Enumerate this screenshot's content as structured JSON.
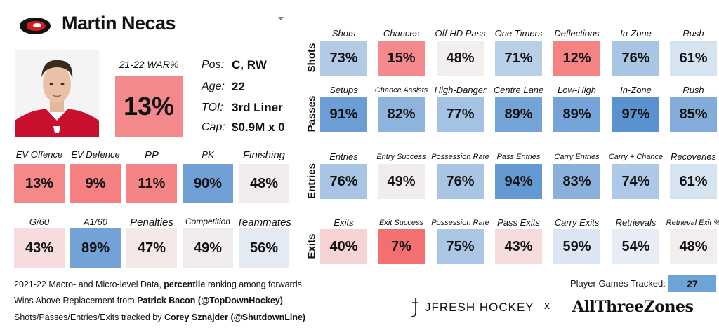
{
  "player": {
    "name": "Martin Necas",
    "war_label": "21-22 WAR%",
    "war_value": "13%",
    "war_color": "#f4898b",
    "info": [
      {
        "label": "Pos:",
        "value": "C, RW"
      },
      {
        "label": "Age:",
        "value": "22"
      },
      {
        "label": "TOI:",
        "value": "3rd Liner"
      },
      {
        "label": "Cap:",
        "value": "$0.9M x 0"
      }
    ]
  },
  "left_grid": [
    [
      {
        "label": "EV Offence",
        "value": "13%",
        "color": "#f5898a"
      },
      {
        "label": "EV Defence",
        "value": "9%",
        "color": "#f48081"
      },
      {
        "label": "PP",
        "value": "11%",
        "color": "#f48485"
      },
      {
        "label": "PK",
        "value": "90%",
        "color": "#6f9fd5"
      },
      {
        "label": "Finishing",
        "value": "48%",
        "color": "#f3ecec"
      }
    ],
    [
      {
        "label": "G/60",
        "value": "43%",
        "color": "#f6dcdc"
      },
      {
        "label": "A1/60",
        "value": "89%",
        "color": "#72a2d6"
      },
      {
        "label": "Penalties",
        "value": "47%",
        "color": "#f4e8e8"
      },
      {
        "label": "Competition",
        "value": "49%",
        "color": "#f1eded"
      },
      {
        "label": "Teammates",
        "value": "56%",
        "color": "#e3eaf4"
      }
    ]
  ],
  "right_grid": [
    {
      "row_label": "Shots",
      "cells": [
        {
          "label": "Shots",
          "value": "73%",
          "color": "#b1cbe7"
        },
        {
          "label": "Chances",
          "value": "15%",
          "color": "#f48a8b"
        },
        {
          "label": "Off HD Pass",
          "value": "48%",
          "color": "#f3eeee"
        },
        {
          "label": "One Timers",
          "value": "71%",
          "color": "#b8cfe8"
        },
        {
          "label": "Deflections",
          "value": "12%",
          "color": "#f58384"
        },
        {
          "label": "In-Zone",
          "value": "76%",
          "color": "#a8c6e4"
        },
        {
          "label": "Rush",
          "value": "61%",
          "color": "#d6e3f1"
        }
      ]
    },
    {
      "row_label": "Passes",
      "cells": [
        {
          "label": "Setups",
          "value": "91%",
          "color": "#6c9ed5"
        },
        {
          "label": "Chance Assists",
          "value": "82%",
          "color": "#8eb4dd"
        },
        {
          "label": "High-Danger",
          "value": "77%",
          "color": "#a4c2e3"
        },
        {
          "label": "Centre Lane",
          "value": "89%",
          "color": "#74a4d7"
        },
        {
          "label": "Low-High",
          "value": "89%",
          "color": "#74a4d7"
        },
        {
          "label": "In-Zone",
          "value": "97%",
          "color": "#5a92cf"
        },
        {
          "label": "Rush",
          "value": "85%",
          "color": "#84acda"
        }
      ]
    },
    {
      "row_label": "Entries",
      "cells": [
        {
          "label": "Entries",
          "value": "76%",
          "color": "#a8c6e4"
        },
        {
          "label": "Entry Success",
          "value": "49%",
          "color": "#f1eded"
        },
        {
          "label": "Possession Rate",
          "value": "76%",
          "color": "#a8c6e4"
        },
        {
          "label": "Pass Entries",
          "value": "94%",
          "color": "#6398d2"
        },
        {
          "label": "Carry Entries",
          "value": "83%",
          "color": "#8ab1dc"
        },
        {
          "label": "Carry + Chance",
          "value": "74%",
          "color": "#aec9e6"
        },
        {
          "label": "Recoveries",
          "value": "61%",
          "color": "#d6e3f1"
        }
      ]
    },
    {
      "row_label": "Exits",
      "cells": [
        {
          "label": "Exits",
          "value": "40%",
          "color": "#f7d4d4"
        },
        {
          "label": "Exit Success",
          "value": "7%",
          "color": "#f47070"
        },
        {
          "label": "Possession Rate",
          "value": "75%",
          "color": "#abc7e5"
        },
        {
          "label": "Pass Exits",
          "value": "43%",
          "color": "#f6dcdc"
        },
        {
          "label": "Carry Exits",
          "value": "59%",
          "color": "#dbe6f2"
        },
        {
          "label": "Retrievals",
          "value": "54%",
          "color": "#e8edf5"
        },
        {
          "label": "Retrieval Exit %",
          "value": "48%",
          "color": "#f3eeee"
        }
      ]
    }
  ],
  "footer": {
    "line1_a": "2021-22 Macro- and Micro-level Data, ",
    "line1_b": "percentile",
    "line1_c": " ranking among forwards",
    "line2_a": "Wins Above Replacement from ",
    "line2_b": "Patrick Bacon (@TopDownHockey)",
    "line3_a": "Shots/Passes/Entries/Exits tracked by ",
    "line3_b": "Corey Sznajder (@ShutdownLine)",
    "games_label": "Player Games Tracked:",
    "games_value": "27",
    "games_color": "#6ea3d6",
    "brand1": "JFRESH HOCKEY",
    "separator": "x",
    "brand2": "AllThreeZones"
  }
}
